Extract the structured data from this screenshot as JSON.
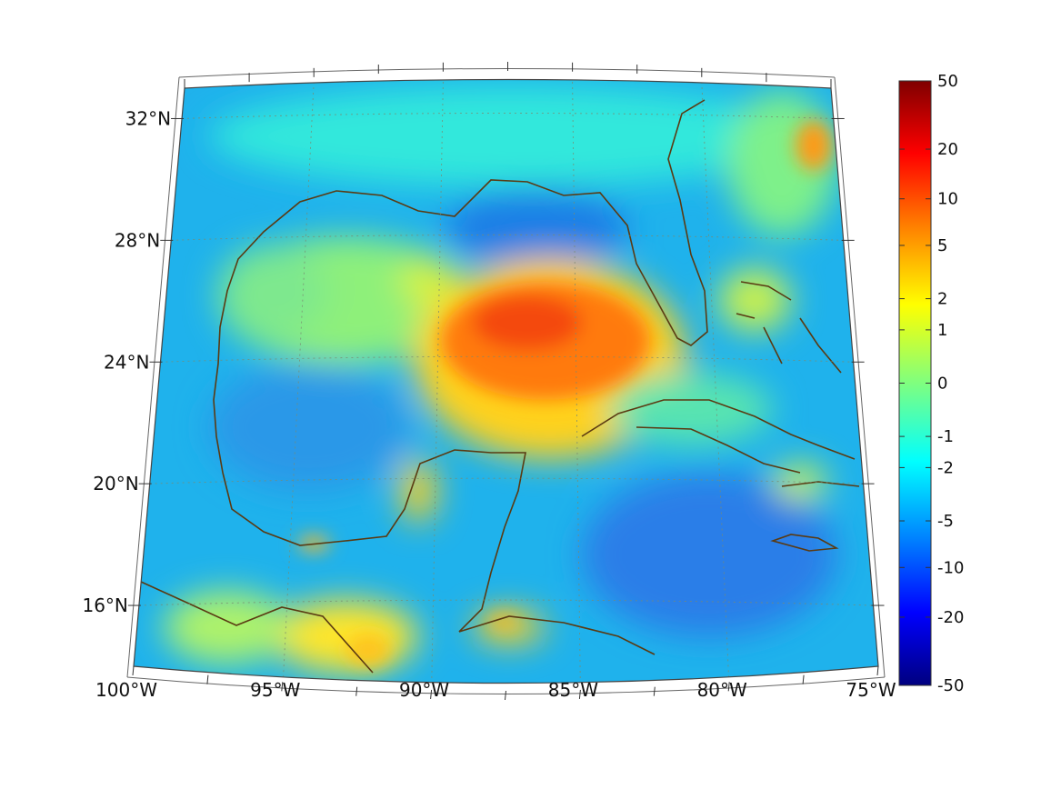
{
  "map": {
    "longitude_labels": [
      "100°W",
      "95°W",
      "90°W",
      "85°W",
      "80°W",
      "75°W"
    ],
    "latitude_labels": [
      "16°N",
      "20°N",
      "24°N",
      "28°N",
      "32°N"
    ],
    "longitude_range": [
      -100,
      -75
    ],
    "latitude_range": [
      14,
      33
    ],
    "coastline_color": "#5a3a12",
    "grid": "dotted"
  },
  "colorbar": {
    "colormap": "jet",
    "scale": "symmetric-log",
    "tick_labels": [
      "50",
      "20",
      "10",
      "5",
      "2",
      "1",
      "0",
      "-1",
      "-2",
      "-5",
      "-10",
      "-20",
      "-50"
    ],
    "tick_values": [
      50,
      20,
      10,
      5,
      2,
      1,
      0,
      -1,
      -2,
      -5,
      -10,
      -20,
      -50
    ]
  }
}
